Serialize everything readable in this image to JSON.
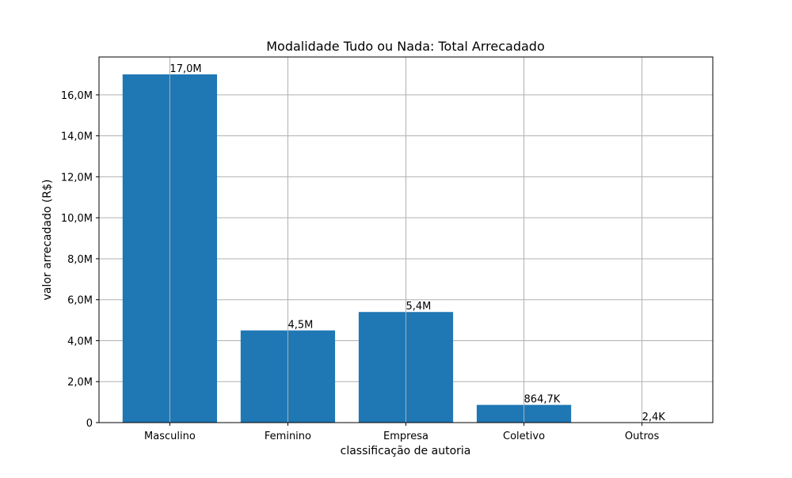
{
  "chart_data": {
    "type": "bar",
    "title": "Modalidade Tudo ou Nada: Total Arrecadado",
    "xlabel": "classificação de autoria",
    "ylabel": "valor arrecadado (R$)",
    "categories": [
      "Masculino",
      "Feminino",
      "Empresa",
      "Coletivo",
      "Outros"
    ],
    "values": [
      17000000,
      4500000,
      5400000,
      864700,
      2400
    ],
    "data_labels": [
      "17,0M",
      "4,5M",
      "5,4M",
      "864,7K",
      "2,4K"
    ],
    "yticks": [
      0,
      2000000,
      4000000,
      6000000,
      8000000,
      10000000,
      12000000,
      14000000,
      16000000
    ],
    "ytick_labels": [
      "0",
      "2,0M",
      "4,0M",
      "6,0M",
      "8,0M",
      "10,0M",
      "12,0M",
      "14,0M",
      "16,0M"
    ],
    "ylim": [
      0,
      17850000
    ],
    "grid": true,
    "colors": {
      "bar": "#1f77b4",
      "grid": "#b0b0b0",
      "axis": "#000000"
    }
  }
}
